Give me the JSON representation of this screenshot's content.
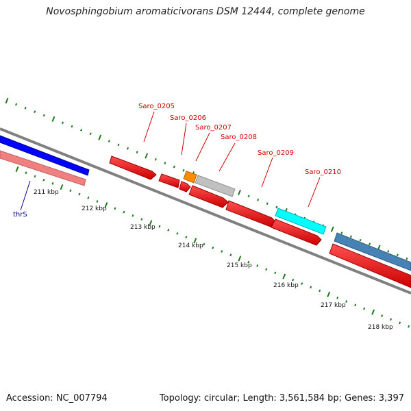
{
  "title": "Novosphingobium aromaticivorans DSM 12444, complete genome",
  "footer": {
    "accession": "Accession: NC_007794",
    "summary": "Topology: circular; Length: 3,561,584 bp; Genes: 3,397"
  },
  "ticks": [
    "211 kbp",
    "212 kbp",
    "213 kbp",
    "214 kbp",
    "215 kbp",
    "216 kbp",
    "217 kbp",
    "218 kbp"
  ],
  "genes": [
    "Saro_0205",
    "Saro_0206",
    "Saro_0207",
    "Saro_0208",
    "Saro_0209",
    "Saro_0210"
  ],
  "left_gene": "thrS",
  "colors": {
    "backbone": "#808080",
    "ruler": "#1a7a1a",
    "gene_red": "#ff0000",
    "gene_blue": "#0000ff",
    "gene_pink": "#f08080",
    "gene_orange": "#ff8c00",
    "gene_gray": "#c0c0c0",
    "gene_cyan": "#00ffff",
    "gene_steel": "#4682b4",
    "label_red": "#cc0000",
    "label_blue": "#00008b"
  }
}
